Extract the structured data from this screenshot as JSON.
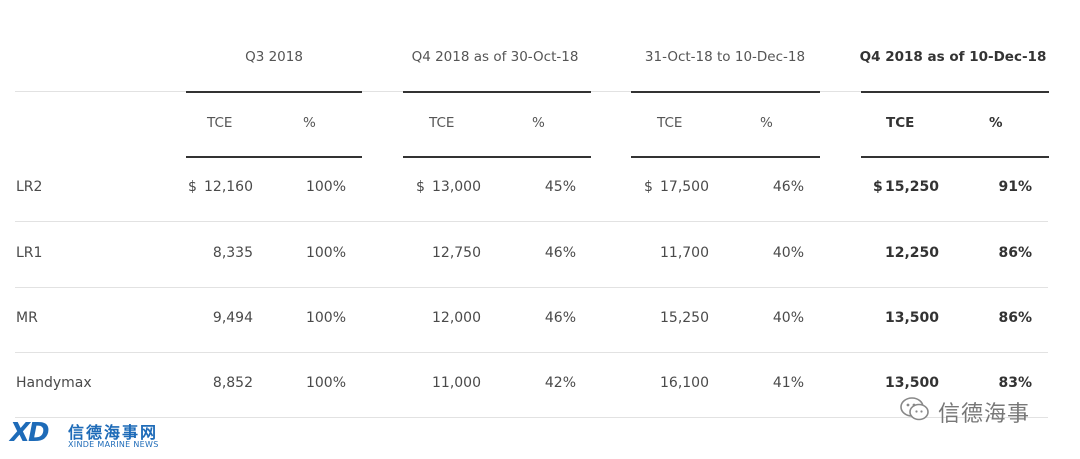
{
  "columns": [
    {
      "title": "Q3 2018",
      "bold": false
    },
    {
      "title": "Q4 2018 as of 30-Oct-18",
      "bold": false
    },
    {
      "title": "31-Oct-18 to 10-Dec-18",
      "bold": false
    },
    {
      "title": "Q4 2018 as of 10-Dec-18",
      "bold": true
    }
  ],
  "subheaders": {
    "tce": "TCE",
    "pct": "%"
  },
  "currency_symbol": "$",
  "rows": [
    {
      "label": "LR2",
      "values": [
        [
          "12,160",
          "100%"
        ],
        [
          "13,000",
          "45%"
        ],
        [
          "17,500",
          "46%"
        ],
        [
          "15,250",
          "91%"
        ]
      ],
      "dollar": true
    },
    {
      "label": "LR1",
      "values": [
        [
          "8,335",
          "100%"
        ],
        [
          "12,750",
          "46%"
        ],
        [
          "11,700",
          "40%"
        ],
        [
          "12,250",
          "86%"
        ]
      ],
      "dollar": false
    },
    {
      "label": "MR",
      "values": [
        [
          "9,494",
          "100%"
        ],
        [
          "12,000",
          "46%"
        ],
        [
          "15,250",
          "40%"
        ],
        [
          "13,500",
          "86%"
        ]
      ],
      "dollar": false
    },
    {
      "label": "Handymax",
      "values": [
        [
          "8,852",
          "100%"
        ],
        [
          "11,000",
          "42%"
        ],
        [
          "16,100",
          "41%"
        ],
        [
          "13,500",
          "83%"
        ]
      ],
      "dollar": false
    }
  ],
  "watermark_left": {
    "mark": "XD",
    "cn": "信德海事网",
    "en": "XINDE MARINE NEWS"
  },
  "watermark_right": {
    "text": "信德海事"
  }
}
